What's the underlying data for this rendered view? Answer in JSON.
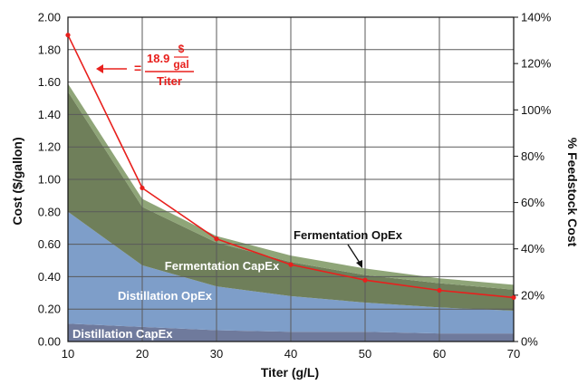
{
  "chart_data": {
    "type": "area",
    "x": [
      9,
      19,
      29,
      39,
      49,
      59,
      69
    ],
    "xlim": [
      9,
      69
    ],
    "ylim": [
      0,
      2.0
    ],
    "y2lim": [
      0,
      140
    ],
    "xlabel": "Titer (g/L)",
    "ylabel": "Cost ($/gallon)",
    "y2label": "% Feedstock Cost",
    "grid": true,
    "x_ticks": [
      "10",
      "20",
      "30",
      "40",
      "50",
      "60",
      "70"
    ],
    "y_ticks": [
      "0.00",
      "0.20",
      "0.40",
      "0.60",
      "0.80",
      "1.00",
      "1.20",
      "1.40",
      "1.60",
      "1.80",
      "2.00"
    ],
    "y2_ticks": [
      "0%",
      "20%",
      "40%",
      "60%",
      "80%",
      "100%",
      "120%",
      "140%"
    ],
    "series": [
      {
        "name": "Distillation CapEx",
        "type": "stacked-area",
        "color": "#6f7a9c",
        "values": [
          0.11,
          0.09,
          0.07,
          0.06,
          0.06,
          0.05,
          0.05
        ]
      },
      {
        "name": "Distillation OpEx",
        "type": "stacked-area",
        "color": "#7e9ec9",
        "values": [
          0.69,
          0.38,
          0.27,
          0.22,
          0.18,
          0.16,
          0.14
        ]
      },
      {
        "name": "Fermentation CapEx",
        "type": "stacked-area",
        "color": "#6f7f5a",
        "values": [
          0.74,
          0.36,
          0.27,
          0.21,
          0.17,
          0.15,
          0.13
        ]
      },
      {
        "name": "Fermentation OpEx",
        "type": "stacked-area",
        "color": "#8fa578",
        "values": [
          0.05,
          0.05,
          0.04,
          0.04,
          0.04,
          0.03,
          0.03
        ]
      },
      {
        "name": "% Feedstock Cost",
        "type": "line",
        "axis": "right",
        "color": "#e8201d",
        "values": [
          132.3,
          66.3,
          44.3,
          33.2,
          26.5,
          22.1,
          19.0
        ]
      }
    ],
    "annotations": {
      "formula_numerator_value": "18.9",
      "formula_unit_top": "$",
      "formula_unit_bottom": "gal",
      "formula_denominator": "Titer",
      "formula_equals": "="
    }
  }
}
